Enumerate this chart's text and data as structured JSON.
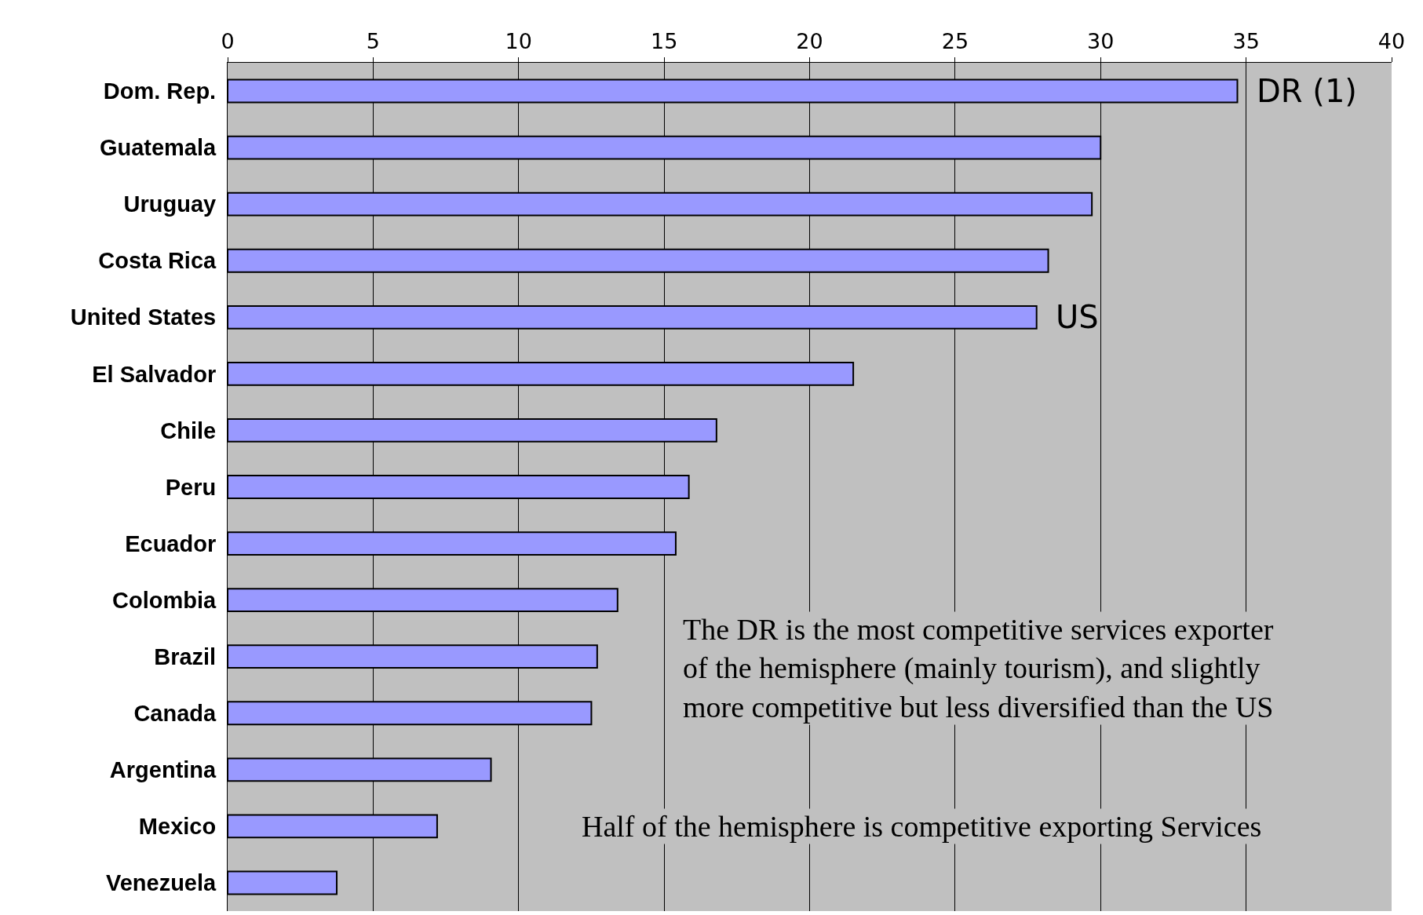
{
  "chart_data": {
    "type": "bar",
    "orientation": "horizontal",
    "categories": [
      "Dom. Rep.",
      "Guatemala",
      "Uruguay",
      "Costa Rica",
      "United States",
      "El Salvador",
      "Chile",
      "Peru",
      "Ecuador",
      "Colombia",
      "Brazil",
      "Canada",
      "Argentina",
      "Mexico",
      "Venezuela"
    ],
    "values": [
      34.7,
      30.0,
      29.7,
      28.2,
      27.8,
      21.5,
      16.8,
      15.85,
      15.4,
      13.4,
      12.7,
      12.5,
      9.05,
      7.2,
      3.75
    ],
    "color": "#9999ff",
    "xlim": [
      0,
      40
    ],
    "xticks": [
      0,
      5,
      10,
      15,
      20,
      25,
      30,
      35,
      40
    ],
    "grid": "x",
    "annotations": [
      {
        "text": "DR (1)",
        "x": 34.7,
        "y": "Dom. Rep."
      },
      {
        "text": "US",
        "x": 27.8,
        "y": "United States"
      },
      "The DR is the most competitive services exporter\nof the hemisphere (mainly tourism), and slightly\nmore competitive but less diversified than the US",
      "Half of the hemisphere is competitive exporting Services"
    ]
  }
}
